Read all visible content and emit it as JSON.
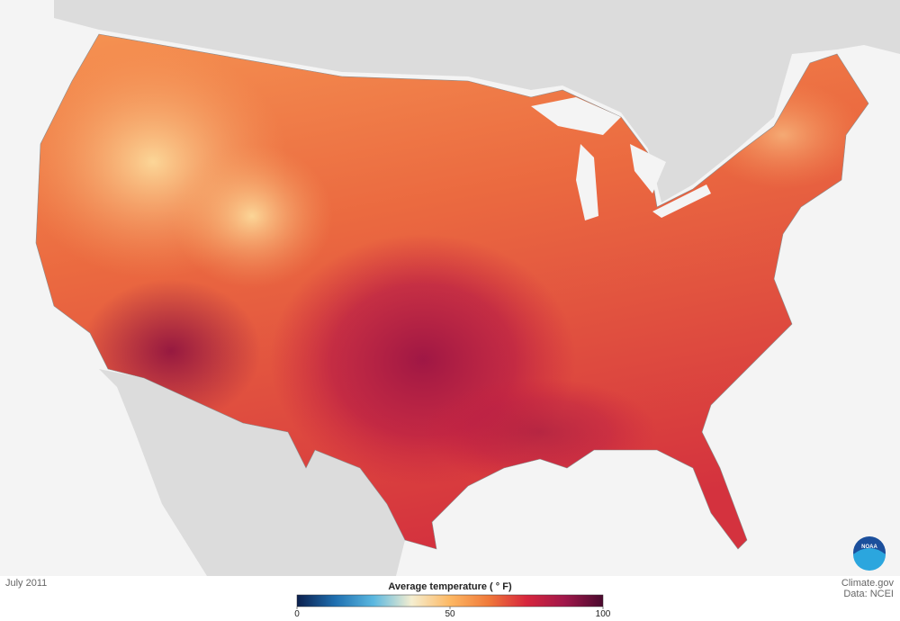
{
  "map": {
    "date": "July 2011",
    "legend": {
      "title": "Average temperature ( ° F)",
      "range": [
        0,
        100
      ],
      "ticks": [
        0,
        50,
        100
      ],
      "colors": [
        "#0b1f4d",
        "#1f6fb0",
        "#5bb8e0",
        "#f5eed0",
        "#fdb863",
        "#f07a3a",
        "#d7263d",
        "#a0174a",
        "#4a0a2e"
      ]
    },
    "credits": [
      "Climate.gov",
      "Data: NCEI"
    ],
    "logo": "NOAA"
  }
}
